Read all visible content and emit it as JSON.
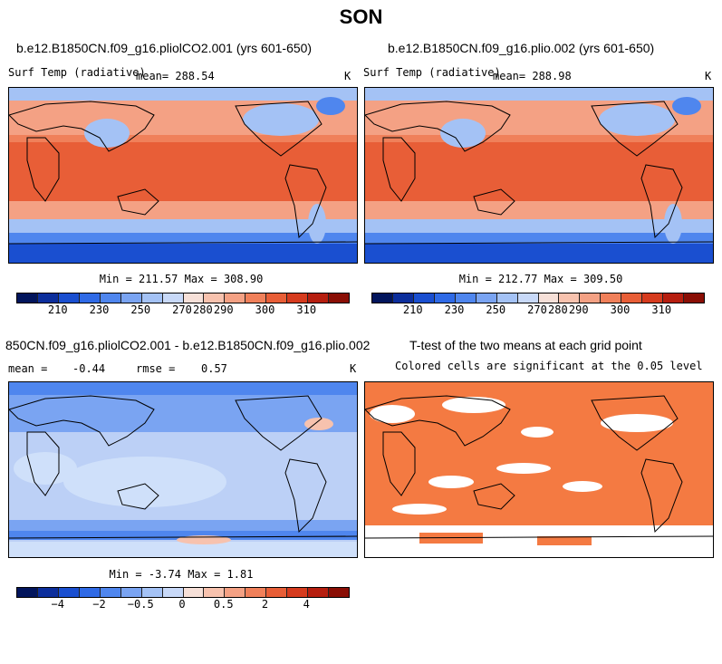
{
  "title": "SON",
  "panels": {
    "left": {
      "run": "b.e12.B1850CN.f09_g16.pliolCO2.001 (yrs 601-650)",
      "variable": "Surf Temp (radiative)",
      "mean_text": "mean= 288.54",
      "units": "K",
      "minmax": "Min = 211.57 Max = 308.90"
    },
    "right": {
      "run": "b.e12.B1850CN.f09_g16.plio.002 (yrs 601-650)",
      "variable": "Surf Temp (radiative)",
      "mean_text": "mean= 288.98",
      "units": "K",
      "minmax": "Min = 212.77 Max = 309.50"
    },
    "diff": {
      "title": "850CN.f09_g16.pliolCO2.001 - b.e12.B1850CN.f09_g16.plio.002",
      "mean_label": "mean =",
      "mean_value": "-0.44",
      "rmse_label": "rmse =",
      "rmse_value": "0.57",
      "units": "K",
      "minmax": "Min =  -3.74 Max =   1.81"
    },
    "ttest": {
      "title": "T-test of the two means at each grid point",
      "subtitle": "Colored cells are significant at the 0.05 level",
      "color": "#f47a42"
    }
  },
  "colorbars": {
    "abs": {
      "colors": [
        "#02155c",
        "#0c2e9c",
        "#1a4fd0",
        "#2f6ae6",
        "#4f86ee",
        "#7aa4f2",
        "#a4c2f5",
        "#c8d9f8",
        "#f6e0d8",
        "#f7c2ae",
        "#f4a184",
        "#f0805a",
        "#e85e37",
        "#d63b1e",
        "#b61e0f",
        "#8a0e05"
      ],
      "ticks": [
        "210",
        "230",
        "250",
        "270",
        "280",
        "290",
        "300",
        "310"
      ]
    },
    "diff": {
      "colors": [
        "#02155c",
        "#0c2e9c",
        "#1a4fd0",
        "#2f6ae6",
        "#4f86ee",
        "#7aa4f2",
        "#a4c2f5",
        "#c8d9f8",
        "#f6e0d8",
        "#f7c2ae",
        "#f4a184",
        "#f0805a",
        "#e85e37",
        "#d63b1e",
        "#b61e0f",
        "#8a0e05"
      ],
      "ticks": [
        "−4",
        "−2",
        "−0.5",
        "0",
        "0.5",
        "2",
        "4"
      ]
    }
  },
  "map_colors": {
    "polar": "#1a4fd0",
    "cold": "#4f86ee",
    "cool": "#a4c2f5",
    "mild": "#f4a184",
    "warm": "#f0805a",
    "hot": "#e85e37",
    "diff_base": "#bcd0f6",
    "diff_light": "#cfe0fa",
    "diff_neg": "#7aa4f2",
    "diff_strong": "#4f86ee",
    "diff_pos": "#f7c2ae"
  }
}
